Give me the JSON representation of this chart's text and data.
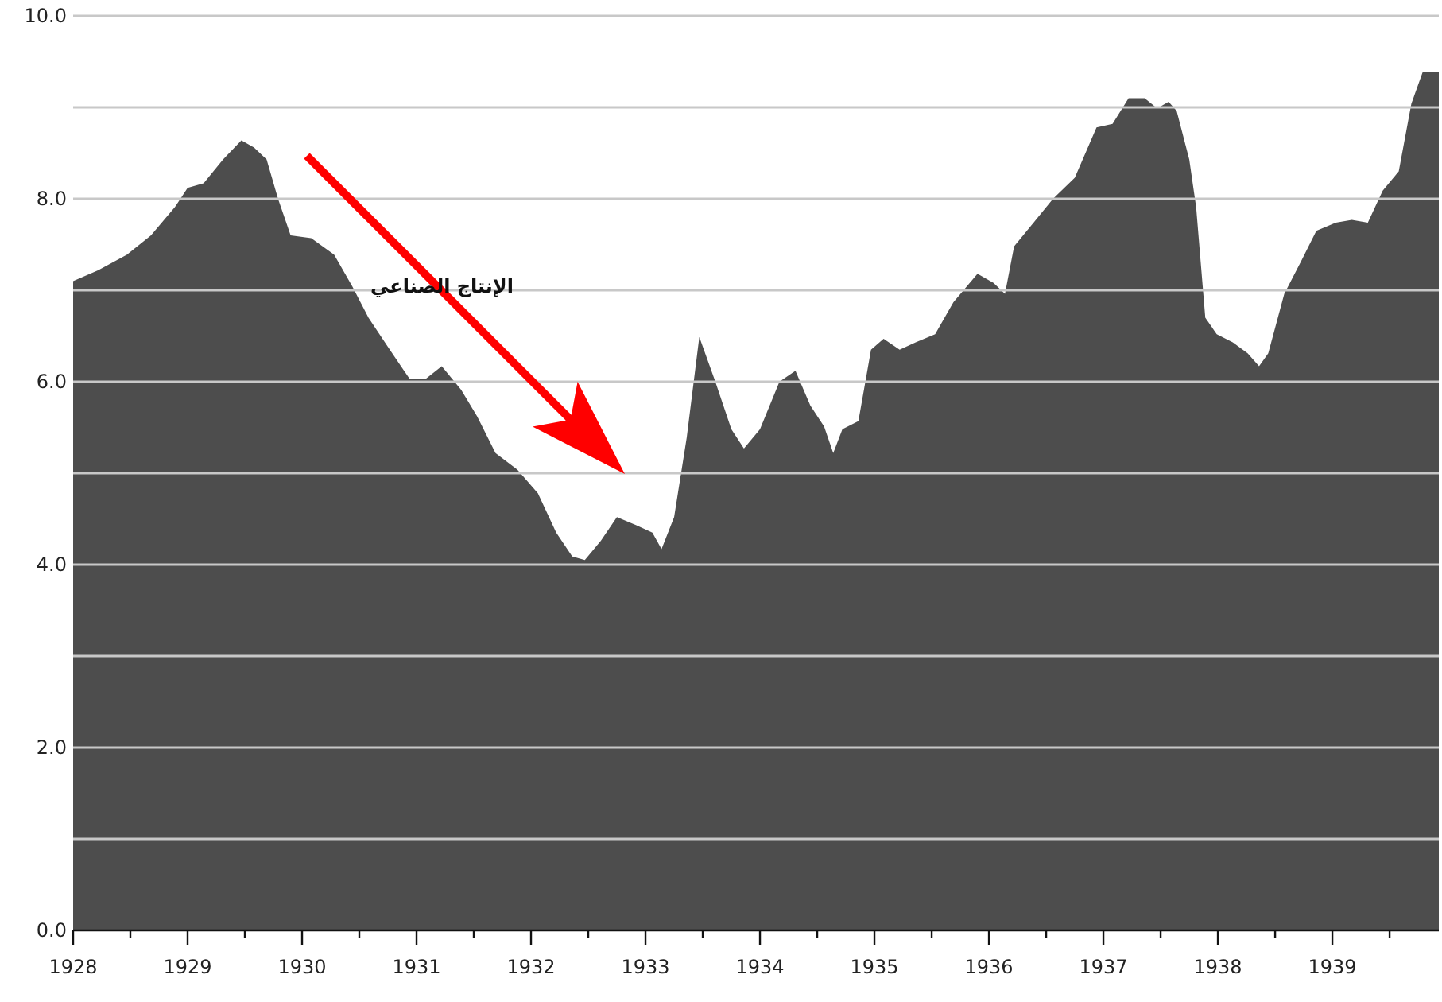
{
  "chart_data": {
    "type": "area",
    "color": "#4d4d4d",
    "marker": "none",
    "grid": "y",
    "annotations": [
      "الإنتاج الصناعي"
    ],
    "x": [
      1928.0,
      1928.22,
      1928.47,
      1928.68,
      1928.89,
      1929.0,
      1929.14,
      1929.31,
      1929.47,
      1929.58,
      1929.69,
      1929.79,
      1929.9,
      1930.08,
      1930.28,
      1930.44,
      1930.58,
      1930.75,
      1930.94,
      1931.08,
      1931.22,
      1931.39,
      1931.53,
      1931.69,
      1931.88,
      1932.06,
      1932.22,
      1932.36,
      1932.47,
      1932.61,
      1932.75,
      1932.92,
      1933.06,
      1933.14,
      1933.25,
      1933.36,
      1933.47,
      1933.61,
      1933.75,
      1933.86,
      1934.0,
      1934.17,
      1934.31,
      1934.44,
      1934.56,
      1934.64,
      1934.72,
      1934.86,
      1934.97,
      1935.08,
      1935.22,
      1935.36,
      1935.53,
      1935.69,
      1935.9,
      1936.04,
      1936.14,
      1936.22,
      1936.39,
      1936.56,
      1936.75,
      1936.94,
      1937.08,
      1937.22,
      1937.36,
      1937.47,
      1937.57,
      1937.64,
      1937.75,
      1937.81,
      1937.89,
      1937.99,
      1938.13,
      1938.26,
      1938.36,
      1938.44,
      1938.58,
      1938.72,
      1938.86,
      1939.03,
      1939.17,
      1939.31,
      1939.44,
      1939.58,
      1939.69,
      1939.79,
      1939.93
    ],
    "values": [
      7.1,
      7.22,
      7.39,
      7.6,
      7.91,
      8.12,
      8.17,
      8.43,
      8.64,
      8.56,
      8.43,
      8.0,
      7.6,
      7.57,
      7.39,
      7.04,
      6.7,
      6.38,
      6.03,
      6.03,
      6.17,
      5.91,
      5.62,
      5.22,
      5.04,
      4.78,
      4.35,
      4.09,
      4.05,
      4.26,
      4.52,
      4.43,
      4.35,
      4.17,
      4.52,
      5.39,
      6.49,
      6.0,
      5.48,
      5.27,
      5.48,
      6.0,
      6.12,
      5.74,
      5.51,
      5.22,
      5.48,
      5.57,
      6.35,
      6.47,
      6.35,
      6.43,
      6.52,
      6.87,
      7.18,
      7.08,
      6.96,
      7.48,
      7.74,
      8.0,
      8.23,
      8.78,
      8.82,
      9.1,
      9.1,
      8.99,
      9.06,
      8.96,
      8.43,
      7.91,
      6.7,
      6.52,
      6.43,
      6.31,
      6.17,
      6.31,
      6.96,
      7.3,
      7.65,
      7.74,
      7.77,
      7.74,
      8.09,
      8.3,
      9.04,
      9.39,
      9.39
    ],
    "xlim": [
      1928,
      1939.93
    ],
    "xticks": [
      1928,
      {
        "value": 1928.5,
        "label": null
      },
      1929,
      {
        "value": 1929.5,
        "label": null
      },
      1930,
      {
        "value": 1930.5,
        "label": null
      },
      1931,
      {
        "value": 1931.5,
        "label": null
      },
      1932,
      {
        "value": 1932.5,
        "label": null
      },
      1933,
      {
        "value": 1933.5,
        "label": null
      },
      1934,
      {
        "value": 1934.5,
        "label": null
      },
      1935,
      {
        "value": 1935.5,
        "label": null
      },
      1936,
      {
        "value": 1936.5,
        "label": null
      },
      1937,
      {
        "value": 1937.5,
        "label": null
      },
      1938,
      {
        "value": 1938.5,
        "label": null
      },
      1939,
      {
        "value": 1939.5,
        "label": null
      }
    ],
    "ylim": [
      0,
      10
    ],
    "yticks": [
      {
        "value": 0,
        "label": "0.0"
      },
      {
        "value": 1,
        "label": null
      },
      {
        "value": 2,
        "label": "2.0"
      },
      {
        "value": 3,
        "label": null
      },
      {
        "value": 4,
        "label": "4.0"
      },
      {
        "value": 5,
        "label": null
      },
      {
        "value": 6,
        "label": "6.0"
      },
      {
        "value": 7,
        "label": null
      },
      {
        "value": 8,
        "label": "8.0"
      },
      {
        "value": 9,
        "label": null
      },
      {
        "value": 10,
        "label": "10.0"
      }
    ]
  }
}
